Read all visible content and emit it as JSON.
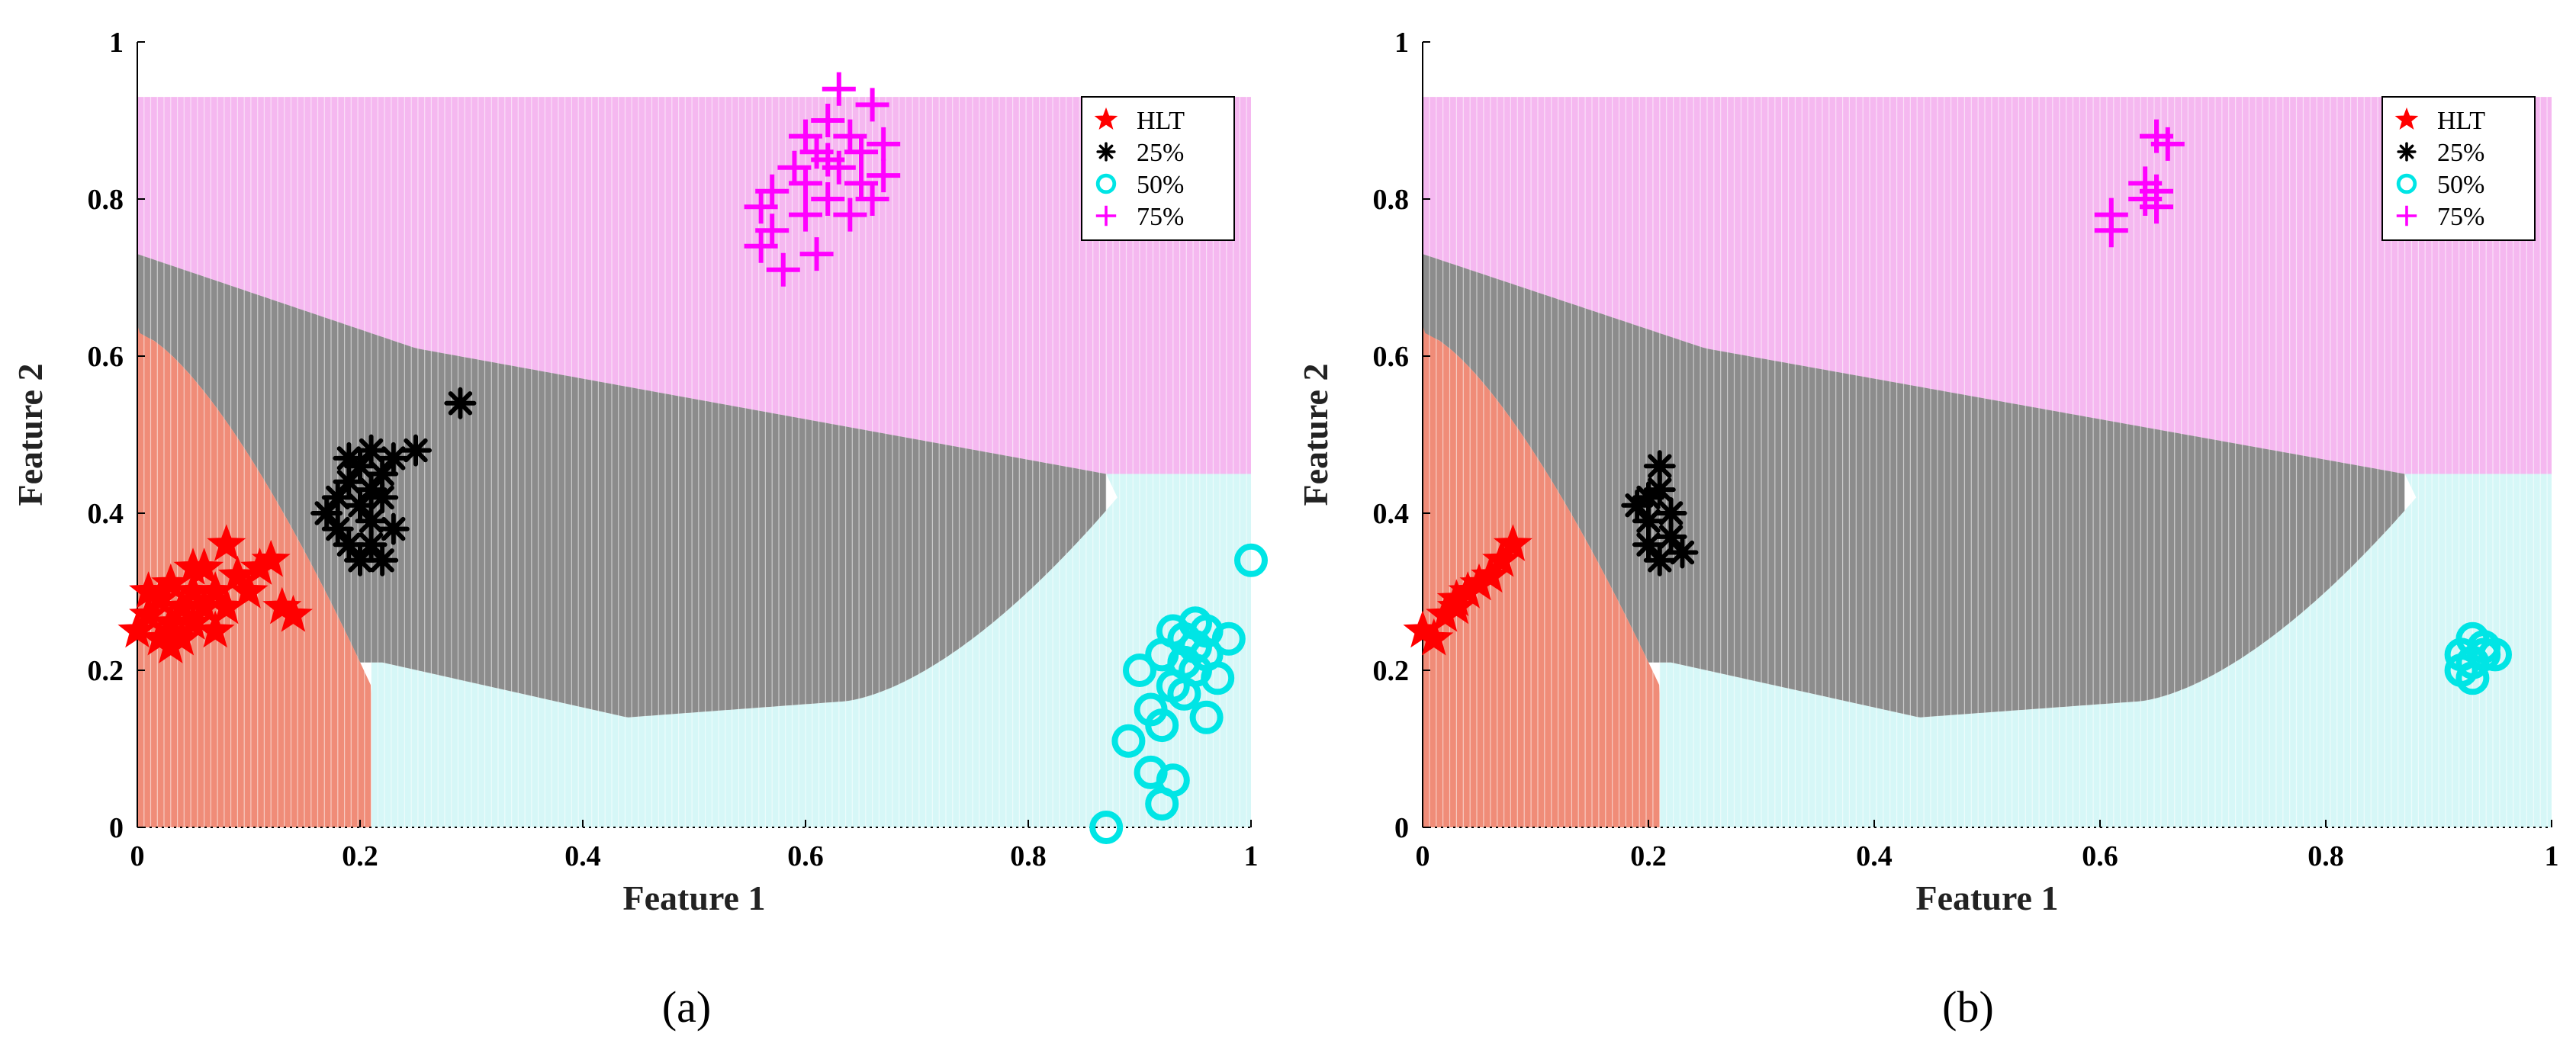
{
  "colors": {
    "HLT": "#ff0000",
    "p25": "#000000",
    "p50": "#00e5e5",
    "p75": "#ff00ff",
    "region_HLT": "#f08c78",
    "region_25": "#8c8c8c",
    "region_50": "#d6f7f7",
    "region_75": "#f5b8f0"
  },
  "chart_data": [
    {
      "type": "scatter",
      "panel_label": "(a)",
      "xlabel": "Feature 1",
      "ylabel": "Feature 2",
      "xlim": [
        0,
        1
      ],
      "ylim": [
        0,
        1
      ],
      "xticks": [
        "0",
        "0.2",
        "0.4",
        "0.6",
        "0.8",
        "1"
      ],
      "yticks": [
        "0",
        "0.2",
        "0.4",
        "0.6",
        "0.8",
        "1"
      ],
      "legend_position": "top-right",
      "background": "decision regions for HLT, 25%, 50%, 75% classes",
      "series": [
        {
          "name": "HLT",
          "marker": "star",
          "points": [
            [
              0.0,
              0.25
            ],
            [
              0.01,
              0.27
            ],
            [
              0.02,
              0.24
            ],
            [
              0.02,
              0.29
            ],
            [
              0.03,
              0.26
            ],
            [
              0.03,
              0.31
            ],
            [
              0.04,
              0.28
            ],
            [
              0.04,
              0.24
            ],
            [
              0.05,
              0.3
            ],
            [
              0.05,
              0.26
            ],
            [
              0.06,
              0.28
            ],
            [
              0.06,
              0.33
            ],
            [
              0.07,
              0.25
            ],
            [
              0.07,
              0.3
            ],
            [
              0.08,
              0.28
            ],
            [
              0.08,
              0.36
            ],
            [
              0.09,
              0.32
            ],
            [
              0.1,
              0.3
            ],
            [
              0.11,
              0.33
            ],
            [
              0.12,
              0.34
            ],
            [
              0.13,
              0.28
            ],
            [
              0.14,
              0.27
            ],
            [
              0.01,
              0.3
            ],
            [
              0.03,
              0.23
            ],
            [
              0.05,
              0.33
            ]
          ]
        },
        {
          "name": "25%",
          "marker": "asterisk",
          "points": [
            [
              0.17,
              0.4
            ],
            [
              0.18,
              0.42
            ],
            [
              0.18,
              0.38
            ],
            [
              0.19,
              0.44
            ],
            [
              0.19,
              0.36
            ],
            [
              0.2,
              0.46
            ],
            [
              0.2,
              0.41
            ],
            [
              0.2,
              0.34
            ],
            [
              0.21,
              0.48
            ],
            [
              0.21,
              0.39
            ],
            [
              0.21,
              0.36
            ],
            [
              0.22,
              0.45
            ],
            [
              0.22,
              0.42
            ],
            [
              0.22,
              0.34
            ],
            [
              0.23,
              0.47
            ],
            [
              0.23,
              0.38
            ],
            [
              0.25,
              0.48
            ],
            [
              0.29,
              0.54
            ],
            [
              0.19,
              0.47
            ],
            [
              0.21,
              0.43
            ]
          ]
        },
        {
          "name": "50%",
          "marker": "circle",
          "points": [
            [
              0.87,
              0.0
            ],
            [
              0.89,
              0.11
            ],
            [
              0.9,
              0.2
            ],
            [
              0.91,
              0.07
            ],
            [
              0.91,
              0.15
            ],
            [
              0.92,
              0.03
            ],
            [
              0.92,
              0.13
            ],
            [
              0.92,
              0.22
            ],
            [
              0.93,
              0.18
            ],
            [
              0.93,
              0.25
            ],
            [
              0.94,
              0.21
            ],
            [
              0.94,
              0.24
            ],
            [
              0.95,
              0.2
            ],
            [
              0.95,
              0.26
            ],
            [
              0.96,
              0.22
            ],
            [
              0.96,
              0.14
            ],
            [
              0.97,
              0.19
            ],
            [
              0.98,
              0.24
            ],
            [
              1.0,
              0.34
            ],
            [
              0.93,
              0.06
            ],
            [
              0.94,
              0.17
            ],
            [
              0.95,
              0.23
            ],
            [
              0.96,
              0.25
            ]
          ]
        },
        {
          "name": "75%",
          "marker": "plus",
          "points": [
            [
              0.56,
              0.74
            ],
            [
              0.56,
              0.79
            ],
            [
              0.57,
              0.76
            ],
            [
              0.57,
              0.81
            ],
            [
              0.58,
              0.71
            ],
            [
              0.59,
              0.84
            ],
            [
              0.6,
              0.78
            ],
            [
              0.6,
              0.88
            ],
            [
              0.61,
              0.73
            ],
            [
              0.61,
              0.86
            ],
            [
              0.62,
              0.8
            ],
            [
              0.62,
              0.9
            ],
            [
              0.63,
              0.94
            ],
            [
              0.63,
              0.84
            ],
            [
              0.64,
              0.78
            ],
            [
              0.64,
              0.88
            ],
            [
              0.65,
              0.82
            ],
            [
              0.65,
              0.86
            ],
            [
              0.66,
              0.8
            ],
            [
              0.66,
              0.92
            ],
            [
              0.67,
              0.83
            ],
            [
              0.67,
              0.87
            ],
            [
              0.62,
              0.85
            ],
            [
              0.6,
              0.82
            ]
          ]
        }
      ]
    },
    {
      "type": "scatter",
      "panel_label": "(b)",
      "xlabel": "Feature 1",
      "ylabel": "Feature 2",
      "xlim": [
        0,
        1
      ],
      "ylim": [
        0,
        1
      ],
      "xticks": [
        "0",
        "0.2",
        "0.4",
        "0.6",
        "0.8",
        "1"
      ],
      "yticks": [
        "0",
        "0.2",
        "0.4",
        "0.6",
        "0.8",
        "1"
      ],
      "legend_position": "top-right",
      "background": "decision regions for HLT, 25%, 50%, 75% classes",
      "series": [
        {
          "name": "HLT",
          "marker": "star",
          "points": [
            [
              0.0,
              0.25
            ],
            [
              0.01,
              0.24
            ],
            [
              0.02,
              0.27
            ],
            [
              0.03,
              0.29
            ],
            [
              0.04,
              0.3
            ],
            [
              0.05,
              0.31
            ],
            [
              0.06,
              0.32
            ],
            [
              0.07,
              0.34
            ],
            [
              0.08,
              0.36
            ],
            [
              0.03,
              0.28
            ]
          ]
        },
        {
          "name": "25%",
          "marker": "asterisk",
          "points": [
            [
              0.19,
              0.41
            ],
            [
              0.2,
              0.36
            ],
            [
              0.2,
              0.39
            ],
            [
              0.21,
              0.34
            ],
            [
              0.21,
              0.43
            ],
            [
              0.21,
              0.46
            ],
            [
              0.22,
              0.37
            ],
            [
              0.22,
              0.4
            ],
            [
              0.23,
              0.35
            ],
            [
              0.2,
              0.42
            ]
          ]
        },
        {
          "name": "50%",
          "marker": "circle",
          "points": [
            [
              0.92,
              0.2
            ],
            [
              0.93,
              0.21
            ],
            [
              0.93,
              0.24
            ],
            [
              0.94,
              0.22
            ],
            [
              0.94,
              0.23
            ],
            [
              0.95,
              0.22
            ],
            [
              0.92,
              0.22
            ],
            [
              0.93,
              0.19
            ]
          ]
        },
        {
          "name": "75%",
          "marker": "plus",
          "points": [
            [
              0.61,
              0.76
            ],
            [
              0.61,
              0.78
            ],
            [
              0.64,
              0.8
            ],
            [
              0.64,
              0.82
            ],
            [
              0.65,
              0.79
            ],
            [
              0.65,
              0.88
            ],
            [
              0.66,
              0.87
            ],
            [
              0.65,
              0.81
            ]
          ]
        }
      ]
    }
  ]
}
